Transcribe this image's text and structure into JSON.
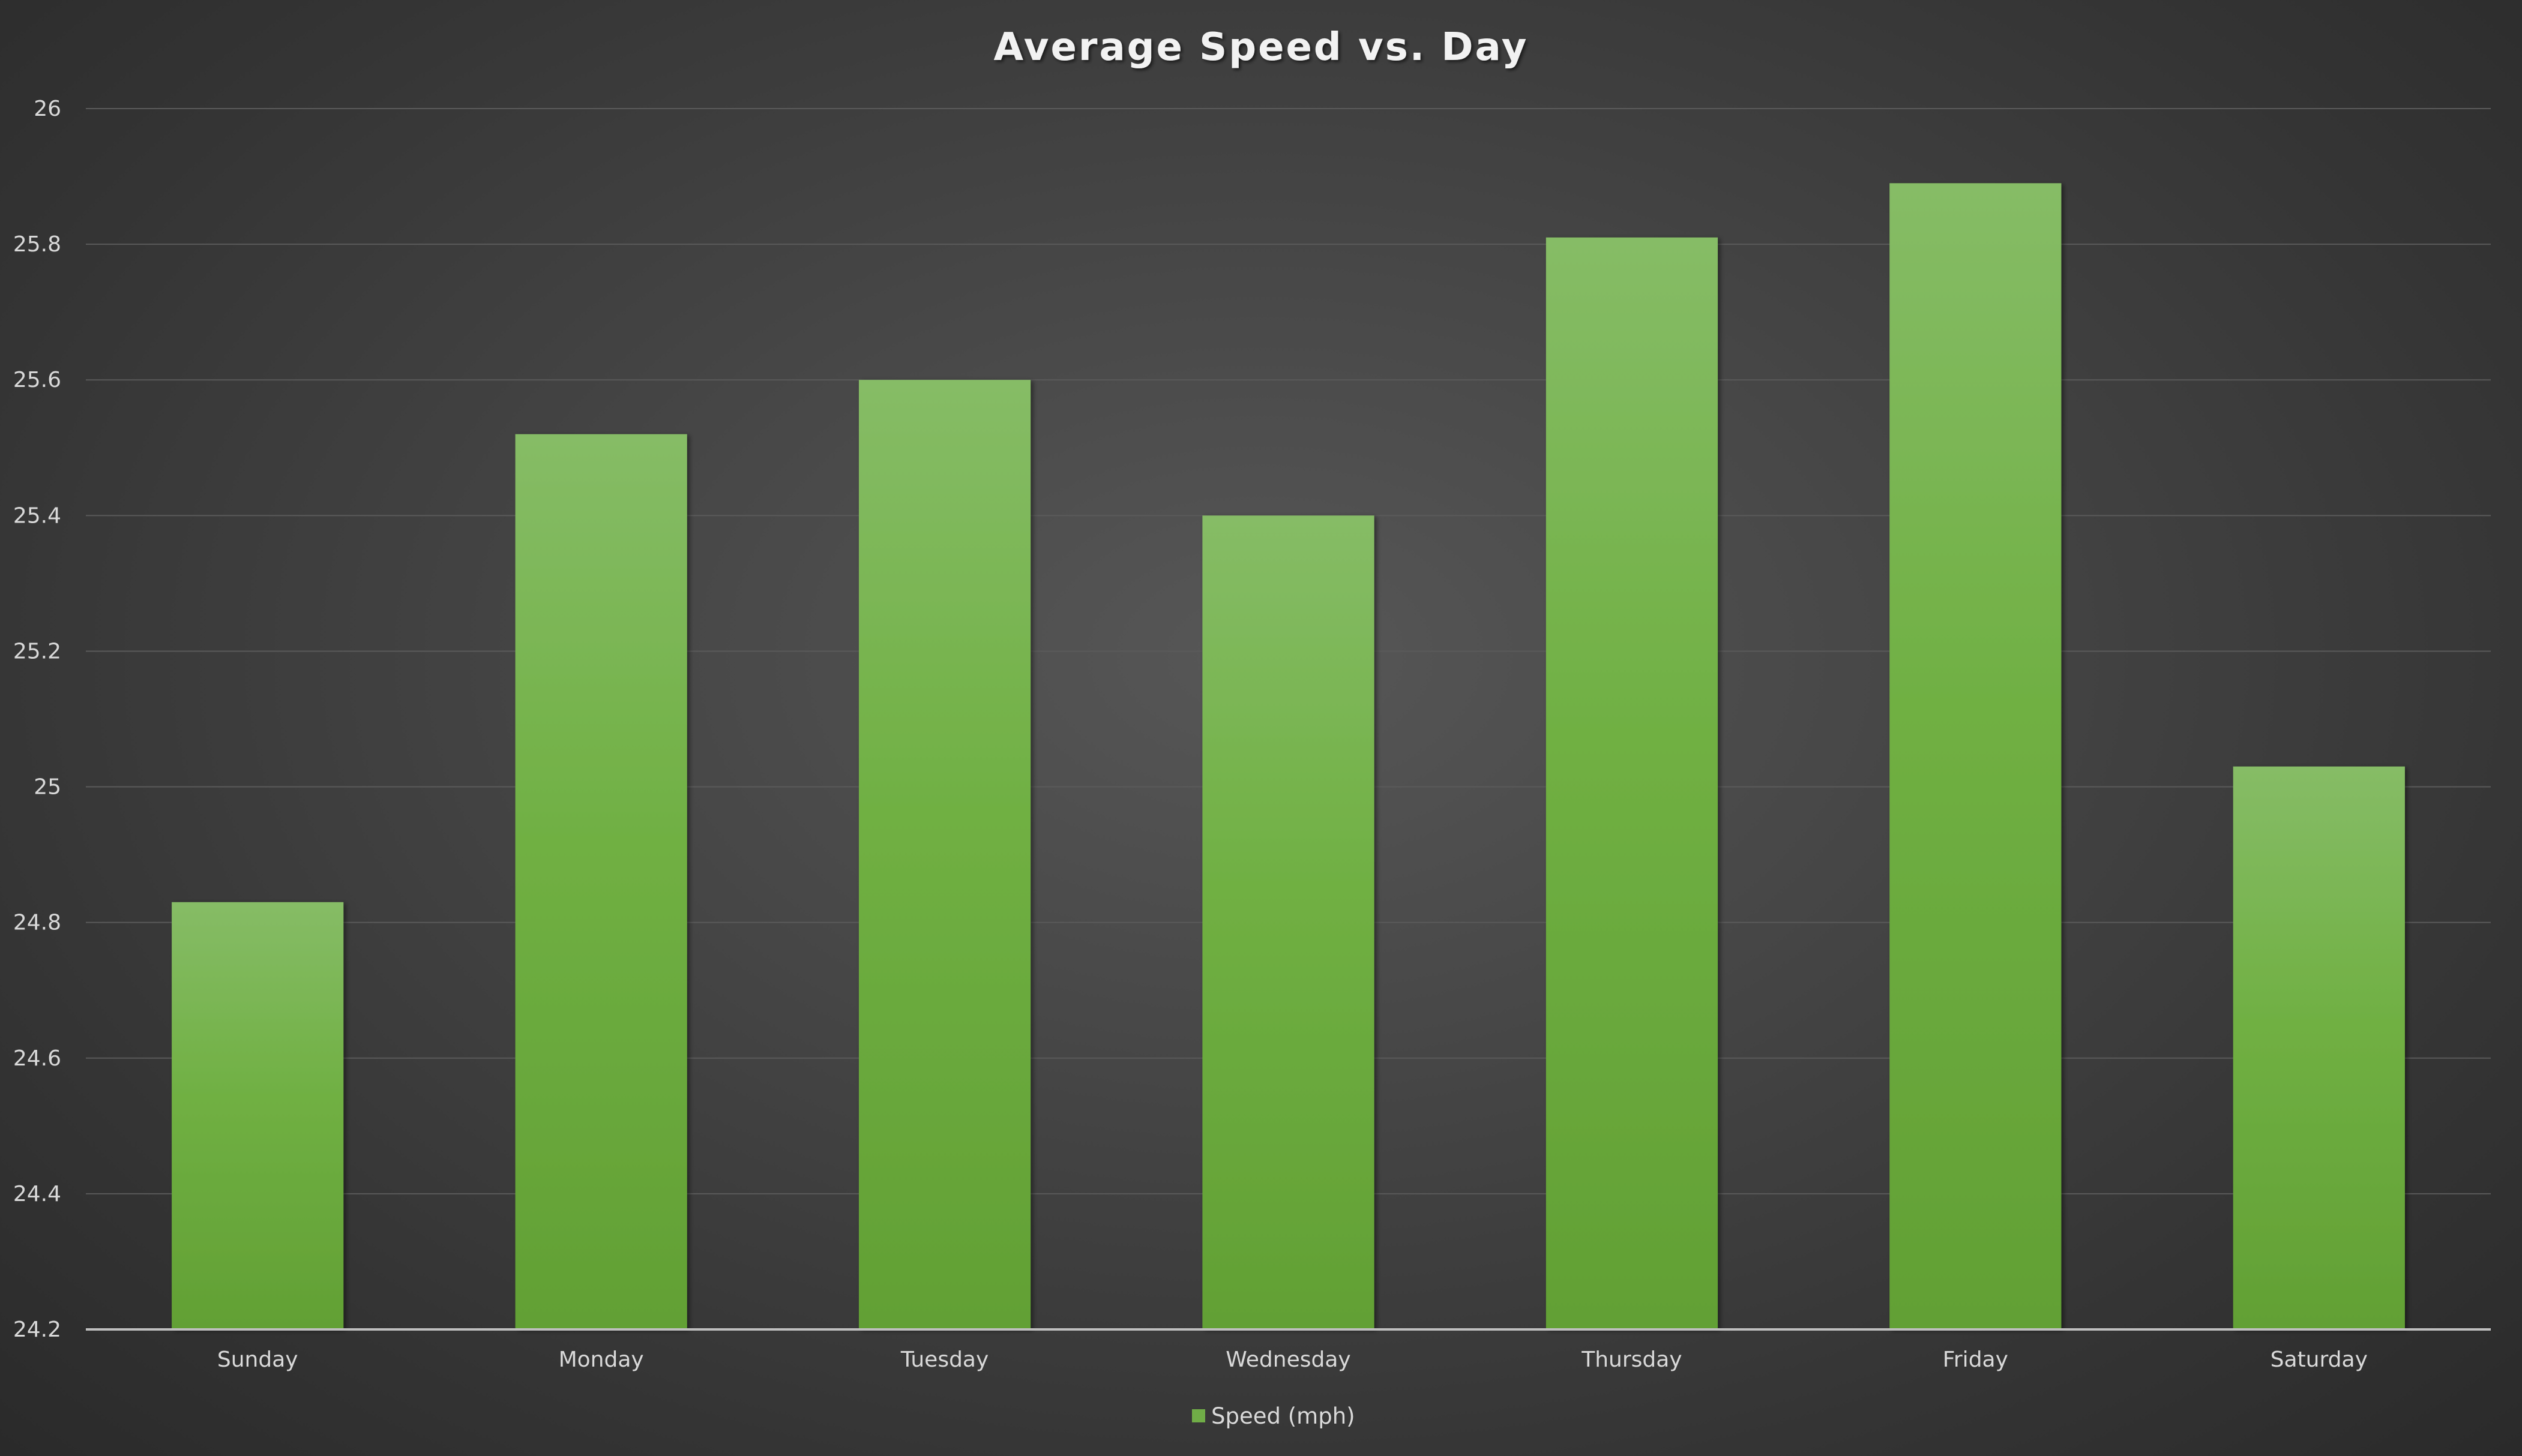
{
  "chart_data": {
    "type": "bar",
    "title": "Average Speed vs. Day",
    "xlabel": "",
    "ylabel": "",
    "categories": [
      "Sunday",
      "Monday",
      "Tuesday",
      "Wednesday",
      "Thursday",
      "Friday",
      "Saturday"
    ],
    "series": [
      {
        "name": "Speed (mph)",
        "values": [
          24.83,
          25.52,
          25.6,
          25.4,
          25.81,
          25.89,
          25.03
        ],
        "color": "#70ad47"
      }
    ],
    "ylim": [
      24.2,
      26
    ],
    "yticks": [
      24.2,
      24.4,
      24.6,
      24.8,
      25,
      25.2,
      25.4,
      25.6,
      25.8,
      26
    ],
    "ytick_labels": [
      "24.2",
      "24.4",
      "24.6",
      "24.8",
      "25",
      "25.2",
      "25.4",
      "25.6",
      "25.8",
      "26"
    ],
    "grid": true,
    "legend": "bottom",
    "background": "#404040",
    "gridline_color": "#5a5a5a",
    "axis_color": "#bfbfbf"
  }
}
